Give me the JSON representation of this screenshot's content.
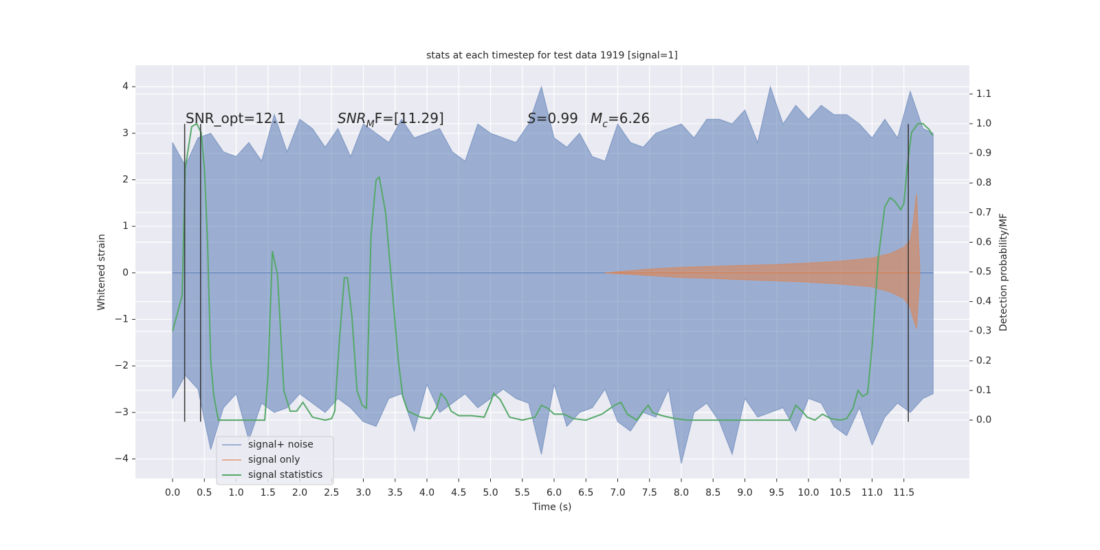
{
  "chart_data": {
    "type": "line",
    "title": "stats at each timestep for test data 1919 [signal=1]",
    "xlabel": "Time (s)",
    "ylabel": "Whitened strain",
    "y2label": "Detection probability/MF",
    "xlim": [
      -0.584,
      12.53
    ],
    "ylim": [
      -4.42,
      4.46
    ],
    "y2lim": [
      -0.197,
      1.197
    ],
    "grid": true,
    "background": "#eaeaf2",
    "legend": "lower left",
    "xticks": [
      {
        "value": 0,
        "label": "0.0"
      },
      {
        "value": 0.5,
        "label": "0.5"
      },
      {
        "value": 1,
        "label": "1.0"
      },
      {
        "value": 1.5,
        "label": "1.5"
      },
      {
        "value": 2,
        "label": "2.0"
      },
      {
        "value": 2.5,
        "label": "2.5"
      },
      {
        "value": 3,
        "label": "3.0"
      },
      {
        "value": 3.5,
        "label": "3.5"
      },
      {
        "value": 4,
        "label": "4.0"
      },
      {
        "value": 4.5,
        "label": "4.5"
      },
      {
        "value": 5,
        "label": "5.0"
      },
      {
        "value": 5.5,
        "label": "5.5"
      },
      {
        "value": 6,
        "label": "6.0"
      },
      {
        "value": 6.5,
        "label": "6.5"
      },
      {
        "value": 7,
        "label": "7.0"
      },
      {
        "value": 7.5,
        "label": "7.5"
      },
      {
        "value": 8,
        "label": "8.0"
      },
      {
        "value": 8.5,
        "label": "8.5"
      },
      {
        "value": 9,
        "label": "9.0"
      },
      {
        "value": 9.5,
        "label": "9.5"
      },
      {
        "value": 10,
        "label": "10.0"
      },
      {
        "value": 10.5,
        "label": "10.5"
      },
      {
        "value": 11,
        "label": "11.0"
      },
      {
        "value": 11.5,
        "label": "11.5"
      }
    ],
    "yticks": [
      {
        "value": -4,
        "label": "−4"
      },
      {
        "value": -3,
        "label": "−3"
      },
      {
        "value": -2,
        "label": "−2"
      },
      {
        "value": -1,
        "label": "−1"
      },
      0,
      1,
      2,
      3,
      4
    ],
    "y2ticks": [
      {
        "value": 0,
        "label": "0.0"
      },
      {
        "value": 0.1,
        "label": "0.1"
      },
      {
        "value": 0.2,
        "label": "0.2"
      },
      {
        "value": 0.3,
        "label": "0.3"
      },
      {
        "value": 0.4,
        "label": "0.4"
      },
      {
        "value": 0.5,
        "label": "0.5"
      },
      {
        "value": 0.6,
        "label": "0.6"
      },
      {
        "value": 0.7,
        "label": "0.7"
      },
      {
        "value": 0.8,
        "label": "0.8"
      },
      {
        "value": 0.9,
        "label": "0.9"
      },
      {
        "value": 1,
        "label": "1.0"
      },
      {
        "value": 1.1,
        "label": "1.1"
      }
    ],
    "annotations": [
      [
        {
          "text": "SNR_opt=12.1"
        }
      ],
      [
        {
          "text": "SNR",
          "italic": true
        },
        {
          "text": "M",
          "italic": true,
          "sub": true
        },
        {
          "text": "F=[11.29]"
        }
      ],
      [
        {
          "text": "S",
          "italic": true
        },
        {
          "text": "=0.99"
        }
      ],
      [
        {
          "text": "M",
          "italic": true
        },
        {
          "text": "c",
          "italic": true,
          "sub": true
        },
        {
          "text": "=6.26"
        }
      ]
    ],
    "vlines": {
      "x": [
        0.19,
        0.44,
        11.57
      ],
      "ymin": -3.2,
      "ymax": 3.2,
      "color": "#333333"
    },
    "series": [
      {
        "name": "signal+ noise",
        "color": "#4c72b0",
        "alpha": 0.5,
        "x": [
          0,
          0.2,
          0.4,
          0.6,
          0.8,
          1,
          1.2,
          1.4,
          1.6,
          1.8,
          2,
          2.2,
          2.4,
          2.6,
          2.8,
          3,
          3.2,
          3.4,
          3.6,
          3.8,
          4,
          4.2,
          4.4,
          4.6,
          4.8,
          5,
          5.2,
          5.4,
          5.6,
          5.8,
          6,
          6.2,
          6.4,
          6.6,
          6.8,
          7,
          7.2,
          7.4,
          7.6,
          7.8,
          8,
          8.2,
          8.4,
          8.6,
          8.8,
          9,
          9.2,
          9.4,
          9.6,
          9.8,
          10,
          10.2,
          10.4,
          10.6,
          10.8,
          11,
          11.2,
          11.4,
          11.6,
          11.8,
          11.96
        ],
        "values": [
          2.8,
          2.3,
          2.9,
          3.0,
          2.6,
          2.5,
          2.8,
          2.4,
          3.4,
          2.6,
          3.3,
          3.1,
          2.7,
          3.1,
          2.5,
          3.2,
          3.0,
          2.8,
          3.3,
          2.9,
          3.0,
          3.1,
          2.6,
          2.4,
          3.2,
          3.0,
          2.9,
          2.8,
          3.2,
          4.0,
          2.9,
          2.7,
          3.0,
          2.5,
          2.4,
          3.2,
          2.8,
          2.7,
          3.0,
          3.1,
          3.2,
          2.9,
          3.3,
          3.3,
          3.2,
          3.5,
          2.8,
          4.0,
          3.2,
          3.6,
          3.3,
          3.6,
          3.4,
          3.4,
          3.2,
          2.9,
          3.3,
          2.9,
          3.9,
          3.1,
          3.0
        ],
        "lower": [
          -2.7,
          -2.2,
          -2.5,
          -3.8,
          -2.9,
          -2.6,
          -3.6,
          -2.8,
          -3.0,
          -2.9,
          -2.6,
          -2.8,
          -3.0,
          -2.7,
          -2.9,
          -3.2,
          -3.3,
          -2.7,
          -2.6,
          -3.4,
          -2.4,
          -3.0,
          -2.8,
          -2.6,
          -2.9,
          -2.7,
          -2.5,
          -2.7,
          -2.8,
          -3.9,
          -2.4,
          -3.3,
          -3.0,
          -2.9,
          -2.5,
          -3.2,
          -3.4,
          -3.0,
          -3.1,
          -2.5,
          -4.1,
          -3.0,
          -2.8,
          -3.2,
          -3.9,
          -2.7,
          -3.1,
          -3.0,
          -2.9,
          -3.4,
          -2.7,
          -2.8,
          -3.3,
          -3.5,
          -2.9,
          -3.7,
          -3.1,
          -2.8,
          -3.0,
          -2.7,
          -2.6
        ]
      },
      {
        "name": "signal only",
        "color": "#dd8452",
        "alpha": 0.6,
        "x": [
          6.8,
          7.5,
          8,
          8.5,
          9,
          9.5,
          10,
          10.5,
          11,
          11.3,
          11.5,
          11.6,
          11.65,
          11.7,
          11.75
        ],
        "values": [
          0,
          0.08,
          0.12,
          0.14,
          0.16,
          0.18,
          0.21,
          0.25,
          0.32,
          0.42,
          0.55,
          0.7,
          1.1,
          1.7,
          0.1
        ],
        "lower": [
          0,
          -0.06,
          -0.1,
          -0.12,
          -0.15,
          -0.17,
          -0.2,
          -0.24,
          -0.3,
          -0.42,
          -0.55,
          -0.75,
          -1.0,
          -1.2,
          -0.1
        ]
      },
      {
        "name": "signal statistics",
        "color": "#55a868",
        "axis": "y2",
        "x": [
          0,
          0.15,
          0.2,
          0.3,
          0.38,
          0.45,
          0.5,
          0.55,
          0.6,
          0.65,
          0.72,
          1,
          1.45,
          1.5,
          1.57,
          1.65,
          1.75,
          1.85,
          1.95,
          2.05,
          2.2,
          2.4,
          2.5,
          2.55,
          2.62,
          2.7,
          2.75,
          2.82,
          2.9,
          2.98,
          3.05,
          3.12,
          3.2,
          3.25,
          3.35,
          3.45,
          3.55,
          3.62,
          3.7,
          3.9,
          4.05,
          4.15,
          4.22,
          4.3,
          4.38,
          4.5,
          4.7,
          4.9,
          5,
          5.05,
          5.15,
          5.3,
          5.5,
          5.7,
          5.8,
          5.9,
          6,
          6.15,
          6.3,
          6.5,
          6.75,
          6.95,
          7.05,
          7.15,
          7.3,
          7.4,
          7.48,
          7.55,
          7.7,
          7.9,
          8.1,
          8.3,
          9.5,
          9.7,
          9.8,
          9.9,
          9.98,
          10.1,
          10.22,
          10.35,
          10.5,
          10.6,
          10.7,
          10.78,
          10.85,
          10.93,
          11,
          11.1,
          11.2,
          11.28,
          11.35,
          11.45,
          11.5,
          11.55,
          11.62,
          11.72,
          11.8,
          11.9,
          11.95
        ],
        "values": [
          0.3,
          0.42,
          0.85,
          0.99,
          1.0,
          0.97,
          0.85,
          0.6,
          0.2,
          0.08,
          0.0,
          0.0,
          0.0,
          0.15,
          0.57,
          0.49,
          0.1,
          0.03,
          0.03,
          0.06,
          0.01,
          0.0,
          0.005,
          0.03,
          0.26,
          0.48,
          0.48,
          0.35,
          0.1,
          0.05,
          0.04,
          0.62,
          0.81,
          0.82,
          0.7,
          0.45,
          0.2,
          0.08,
          0.03,
          0.01,
          0.005,
          0.04,
          0.09,
          0.07,
          0.03,
          0.015,
          0.015,
          0.01,
          0.06,
          0.09,
          0.07,
          0.01,
          0.0,
          0.01,
          0.05,
          0.04,
          0.02,
          0.02,
          0.005,
          0.0,
          0.02,
          0.05,
          0.06,
          0.02,
          0.0,
          0.03,
          0.05,
          0.025,
          0.015,
          0.005,
          0.0,
          0.0,
          0.0,
          0.0,
          0.05,
          0.03,
          0.01,
          0.0,
          0.02,
          0.005,
          0.0,
          0.005,
          0.04,
          0.1,
          0.08,
          0.09,
          0.25,
          0.55,
          0.72,
          0.75,
          0.74,
          0.71,
          0.73,
          0.85,
          0.97,
          1.0,
          1.0,
          0.98,
          0.96
        ]
      }
    ]
  }
}
